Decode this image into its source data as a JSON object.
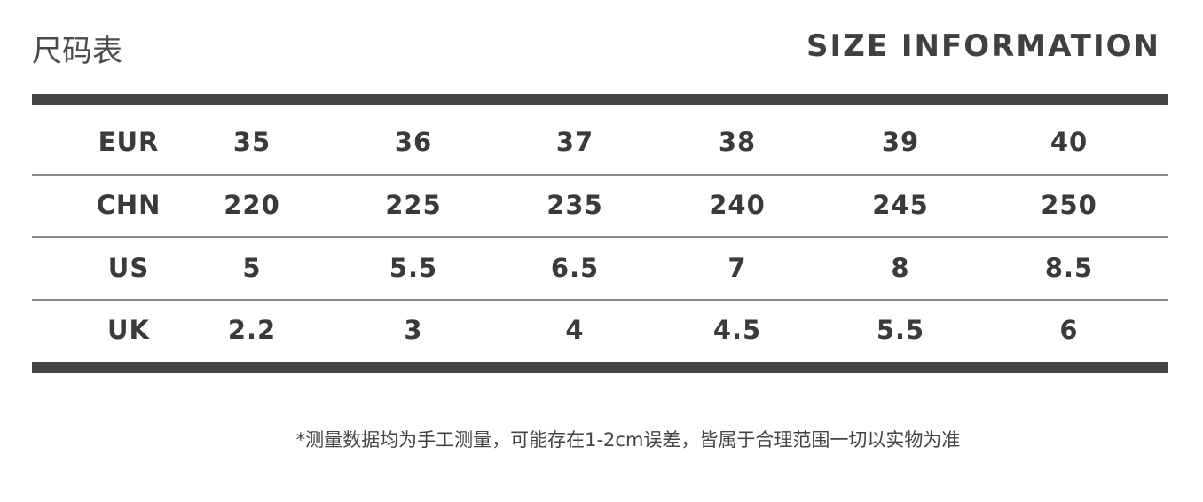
{
  "header": {
    "title_cn": "尺码表",
    "title_en": "SIZE INFORMATION"
  },
  "table": {
    "rows": [
      {
        "label": "EUR",
        "values": [
          "35",
          "36",
          "37",
          "38",
          "39",
          "40"
        ]
      },
      {
        "label": "CHN",
        "values": [
          "220",
          "225",
          "235",
          "240",
          "245",
          "250"
        ]
      },
      {
        "label": "US",
        "values": [
          "5",
          "5.5",
          "6.5",
          "7",
          "8",
          "8.5"
        ]
      },
      {
        "label": "UK",
        "values": [
          "2.2",
          "3",
          "4",
          "4.5",
          "5.5",
          "6"
        ]
      }
    ]
  },
  "note": "*测量数据均为手工测量，可能存在1-2cm误差，皆属于合理范围一切以实物为准"
}
